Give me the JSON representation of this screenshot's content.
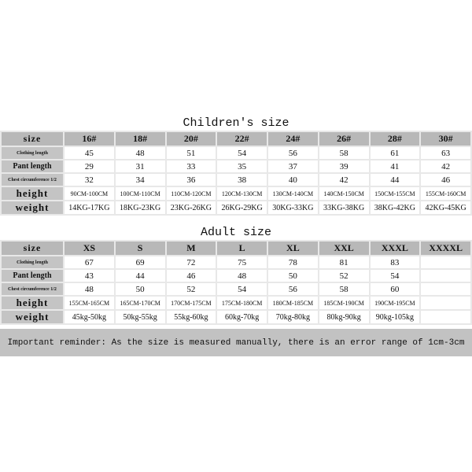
{
  "children": {
    "title": "Children's size",
    "row_labels": [
      "size",
      "Clothing length",
      "Pant length",
      "Chest circumference 1/2",
      "height",
      "weight"
    ],
    "sizes": [
      "16#",
      "18#",
      "20#",
      "22#",
      "24#",
      "26#",
      "28#",
      "30#"
    ],
    "clothing_length": [
      "45",
      "48",
      "51",
      "54",
      "56",
      "58",
      "61",
      "63"
    ],
    "pant_length": [
      "29",
      "31",
      "33",
      "35",
      "37",
      "39",
      "41",
      "42"
    ],
    "chest": [
      "32",
      "34",
      "36",
      "38",
      "40",
      "42",
      "44",
      "46"
    ],
    "height": [
      "90CM-100CM",
      "100CM-110CM",
      "110CM-120CM",
      "120CM-130CM",
      "130CM-140CM",
      "140CM-150CM",
      "150CM-155CM",
      "155CM-160CM"
    ],
    "weight": [
      "14KG-17KG",
      "18KG-23KG",
      "23KG-26KG",
      "26KG-29KG",
      "30KG-33KG",
      "33KG-38KG",
      "38KG-42KG",
      "42KG-45KG"
    ]
  },
  "adult": {
    "title": "Adult size",
    "row_labels": [
      "size",
      "Clothing length",
      "Pant length",
      "Chest circumference 1/2",
      "height",
      "weight"
    ],
    "sizes": [
      "XS",
      "S",
      "M",
      "L",
      "XL",
      "XXL",
      "XXXL",
      "XXXXL"
    ],
    "clothing_length": [
      "67",
      "69",
      "72",
      "75",
      "78",
      "81",
      "83",
      ""
    ],
    "pant_length": [
      "43",
      "44",
      "46",
      "48",
      "50",
      "52",
      "54",
      ""
    ],
    "chest": [
      "48",
      "50",
      "52",
      "54",
      "56",
      "58",
      "60",
      ""
    ],
    "height": [
      "155CM-165CM",
      "165CM-170CM",
      "170CM-175CM",
      "175CM-180CM",
      "180CM-185CM",
      "185CM-190CM",
      "190CM-195CM",
      ""
    ],
    "weight": [
      "45kg-50kg",
      "50kg-55kg",
      "55kg-60kg",
      "60kg-70kg",
      "70kg-80kg",
      "80kg-90kg",
      "90kg-105kg",
      ""
    ]
  },
  "reminder": "Important reminder: As the size is measured manually, there is an error range of 1cm-3cm"
}
